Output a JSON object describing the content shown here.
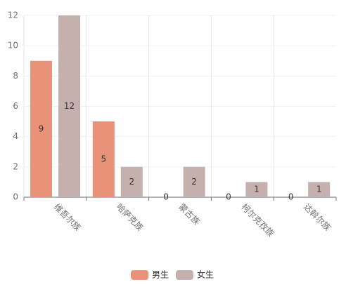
{
  "chart_data": {
    "type": "bar",
    "categories": [
      "维吾尔族",
      "哈萨克族",
      "蒙古族",
      "柯尔克孜族",
      "达斡尔族"
    ],
    "series": [
      {
        "name": "男生",
        "color": "#e8927a",
        "values": [
          9,
          5,
          0,
          0,
          0
        ]
      },
      {
        "name": "女生",
        "color": "#c4b1ad",
        "values": [
          12,
          2,
          2,
          1,
          1
        ]
      }
    ],
    "ylim": [
      0,
      12
    ],
    "yticks": [
      0,
      2,
      4,
      6,
      8,
      10,
      12
    ],
    "grid": true
  }
}
